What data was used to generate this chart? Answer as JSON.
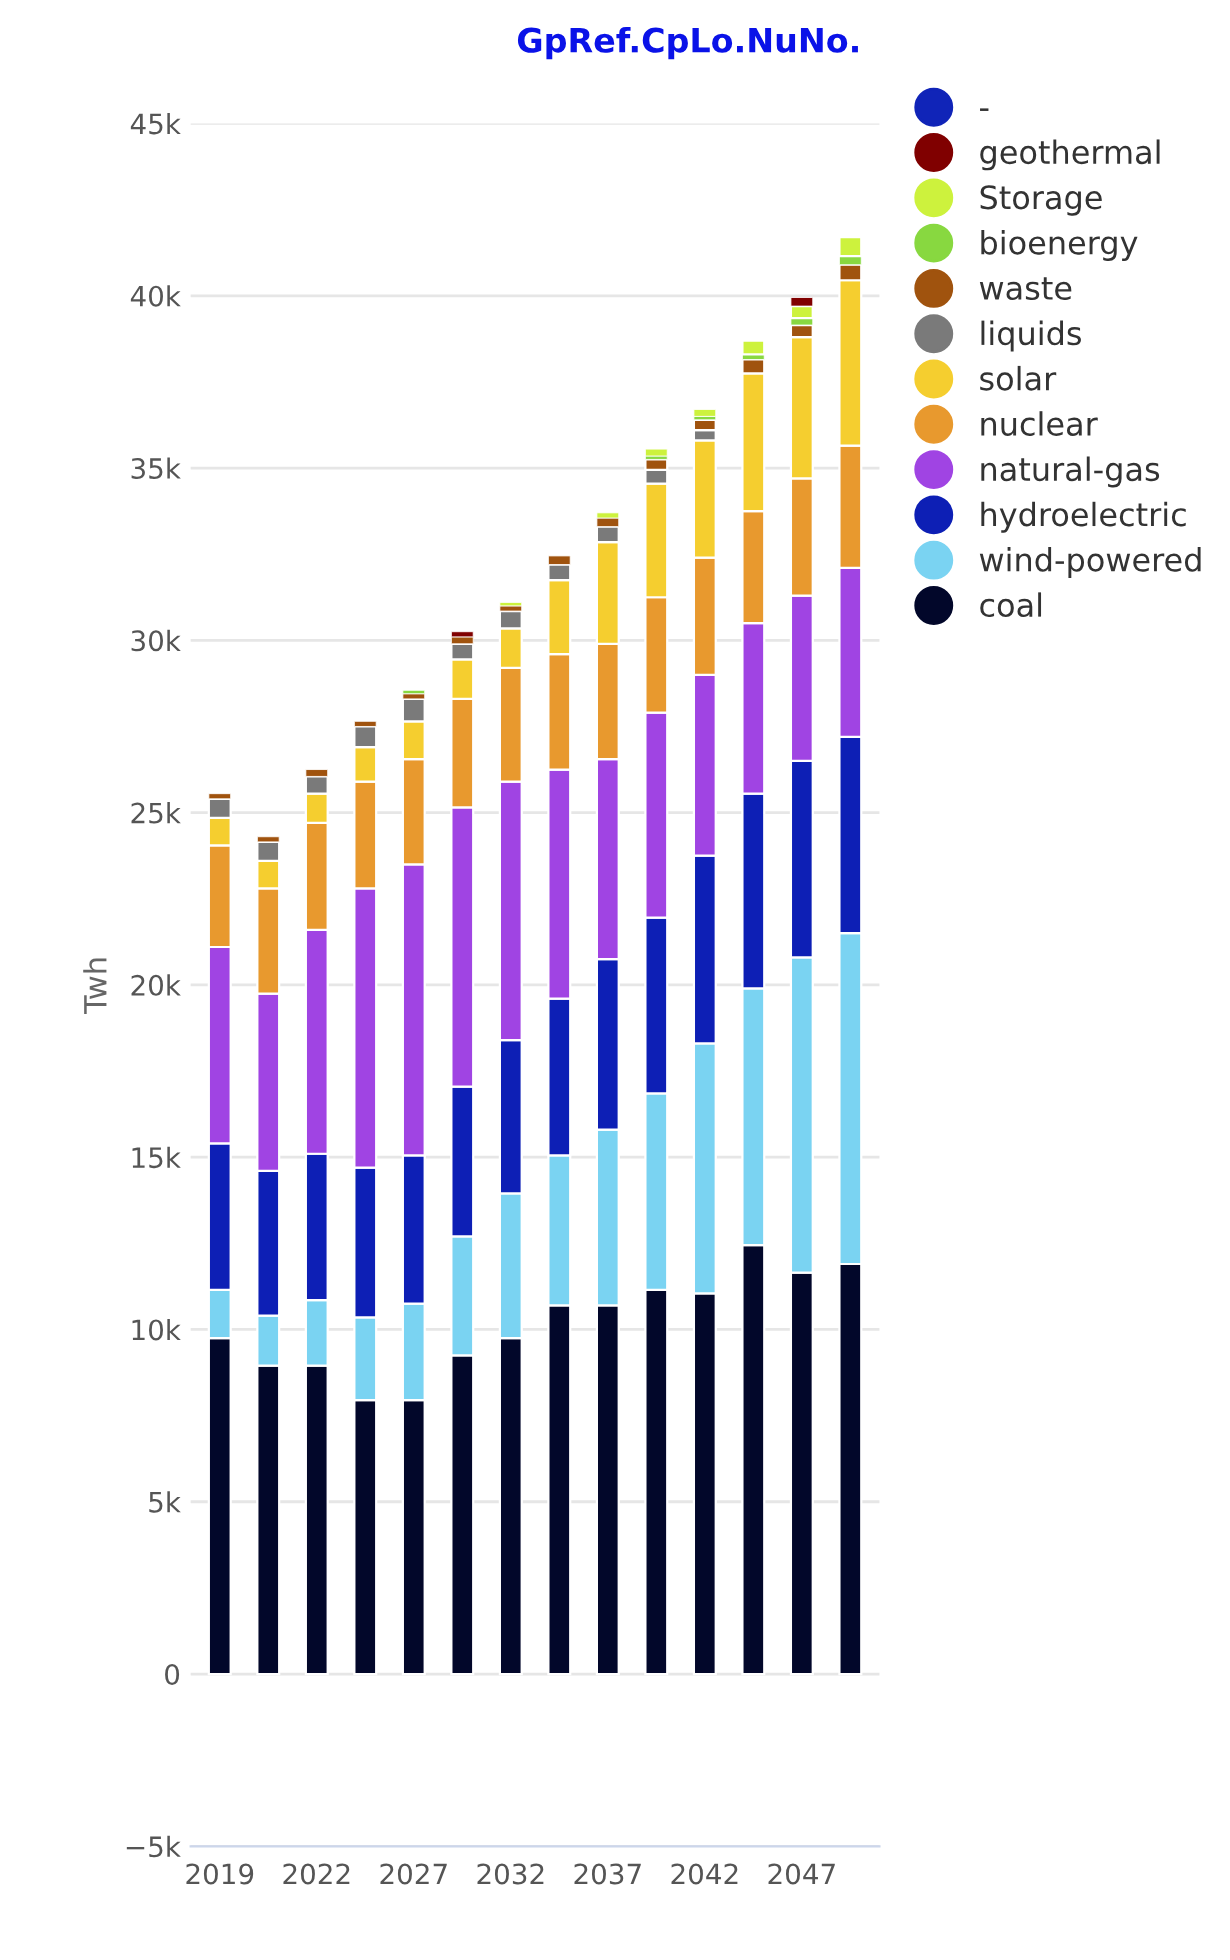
{
  "chart_data": {
    "type": "bar",
    "stacked": true,
    "title": "GpRef.CpLo.NuNo.",
    "ylabel": "Twh",
    "categories": [
      "2019",
      null,
      "2022",
      null,
      "2027",
      null,
      "2032",
      null,
      "2037",
      null,
      "2042",
      null,
      "2047",
      null
    ],
    "ylim": [
      -5000,
      45000
    ],
    "yticks": [
      {
        "value": -5000,
        "label": "−5k"
      },
      0,
      {
        "value": 5000,
        "label": "5k"
      },
      {
        "value": 10000,
        "label": "10k"
      },
      {
        "value": 15000,
        "label": "15k"
      },
      {
        "value": 20000,
        "label": "20k"
      },
      {
        "value": 25000,
        "label": "25k"
      },
      {
        "value": 30000,
        "label": "30k"
      },
      {
        "value": 35000,
        "label": "35k"
      },
      {
        "value": 40000,
        "label": "40k"
      },
      {
        "value": 45000,
        "label": "45k"
      }
    ],
    "grid": "y",
    "legend": "right",
    "marker": "circle",
    "series": [
      {
        "name": "coal",
        "color": "#02072a",
        "values": [
          9750,
          8950,
          8950,
          7950,
          7950,
          9250,
          9750,
          10700,
          10700,
          11150,
          11050,
          12450,
          11650,
          11900
        ]
      },
      {
        "name": "wind-powered",
        "color": "#7ad3f2",
        "values": [
          1400,
          1450,
          1900,
          2400,
          2800,
          3450,
          4200,
          4350,
          5100,
          5700,
          7250,
          7450,
          9150,
          9600
        ]
      },
      {
        "name": "hydroelectric",
        "color": "#0d1fb5",
        "values": [
          4250,
          4200,
          4250,
          4350,
          4300,
          4350,
          4450,
          4550,
          4950,
          5100,
          5450,
          5650,
          5700,
          5700
        ]
      },
      {
        "name": "natural-gas",
        "color": "#a044e3",
        "values": [
          5700,
          5150,
          6500,
          8100,
          8450,
          8100,
          7500,
          6650,
          5800,
          5950,
          5250,
          4950,
          4800,
          4900
        ]
      },
      {
        "name": "nuclear",
        "color": "#e8992e",
        "values": [
          2950,
          3050,
          3100,
          3100,
          3050,
          3150,
          3300,
          3350,
          3350,
          3350,
          3400,
          3250,
          3400,
          3550
        ]
      },
      {
        "name": "solar",
        "color": "#f5ce2f",
        "values": [
          800,
          800,
          850,
          1000,
          1100,
          1150,
          1150,
          2150,
          2950,
          3300,
          3400,
          4000,
          4100,
          4800
        ]
      },
      {
        "name": "liquids",
        "color": "#7a7a7a",
        "values": [
          550,
          550,
          500,
          600,
          650,
          450,
          500,
          450,
          450,
          400,
          300,
          0,
          0,
          0
        ]
      },
      {
        "name": "waste",
        "color": "#a0530e",
        "values": [
          150,
          150,
          200,
          150,
          150,
          200,
          150,
          250,
          250,
          300,
          300,
          400,
          350,
          450
        ]
      },
      {
        "name": "bioenergy",
        "color": "#88d840",
        "values": [
          0,
          0,
          0,
          0,
          100,
          0,
          0,
          0,
          0,
          100,
          100,
          150,
          200,
          250
        ]
      },
      {
        "name": "Storage",
        "color": "#cdf23d",
        "values": [
          0,
          0,
          0,
          0,
          0,
          0,
          100,
          0,
          150,
          200,
          200,
          400,
          350,
          550
        ]
      },
      {
        "name": "geothermal",
        "color": "#800000",
        "values": [
          0,
          0,
          0,
          0,
          0,
          150,
          0,
          0,
          0,
          0,
          0,
          0,
          250,
          0
        ]
      },
      {
        "name": "-",
        "color": "#1024b8",
        "values": [
          0,
          0,
          0,
          0,
          0,
          0,
          0,
          0,
          0,
          0,
          0,
          0,
          0,
          0
        ]
      }
    ]
  }
}
